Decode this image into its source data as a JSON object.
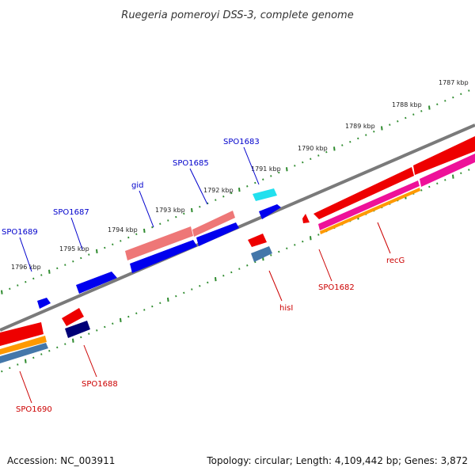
{
  "title": "Ruegeria pomeroyi DSS-3, complete genome",
  "footer": {
    "accession": "Accession: NC_003911",
    "summary": "Topology: circular; Length: 4,109,442 bp; Genes: 3,872"
  },
  "kbp_labels": [
    "1787 kbp",
    "1788 kbp",
    "1789 kbp",
    "1790 kbp",
    "1791 kbp",
    "1792 kbp",
    "1793 kbp",
    "1794 kbp",
    "1795 kbp",
    "1796 kbp"
  ],
  "gene_labels": {
    "top": [
      "SPO1683",
      "SPO1685",
      "gid",
      "SPO1687",
      "SPO1689"
    ],
    "bottom": [
      "recG",
      "SPO1682",
      "hisI",
      "SPO1688",
      "SPO1690"
    ]
  },
  "colors": {
    "backbone": "#7a7a7a",
    "tick": "#2e8b2e",
    "label_top": "#0000cc",
    "label_bottom": "#cc0000",
    "blue_gene": "#0000ee",
    "red_gene": "#ee0000",
    "pink_gene": "#ee7777",
    "cyan_gene": "#22e0ee",
    "navy_gene": "#000077",
    "steel_gene": "#4477aa",
    "magenta_gene": "#ee1199",
    "orange_gene": "#ff9900"
  }
}
